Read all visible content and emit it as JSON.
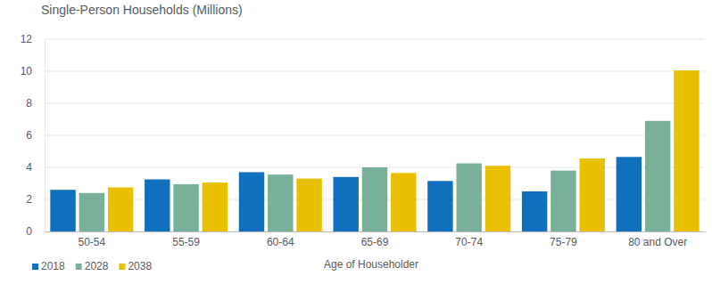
{
  "chart_data": {
    "type": "bar",
    "title": "Single-Person Households (Millions)",
    "x_label": "Age of Householder",
    "categories": [
      "50-54",
      "55-59",
      "60-64",
      "65-69",
      "70-74",
      "75-79",
      "80 and Over"
    ],
    "series": [
      {
        "name": "2018",
        "color": "#1170be",
        "values": [
          2.6,
          3.25,
          3.7,
          3.4,
          3.15,
          2.5,
          4.65
        ]
      },
      {
        "name": "2028",
        "color": "#78b09a",
        "values": [
          2.4,
          2.95,
          3.55,
          4.0,
          4.25,
          3.8,
          6.9
        ]
      },
      {
        "name": "2038",
        "color": "#e9c000",
        "values": [
          2.75,
          3.05,
          3.3,
          3.65,
          4.1,
          4.55,
          10.05
        ]
      }
    ],
    "ylim": [
      0,
      12
    ],
    "yticks": [
      0,
      2,
      4,
      6,
      8,
      10,
      12
    ],
    "grid": true,
    "legend": "bottom-left"
  }
}
